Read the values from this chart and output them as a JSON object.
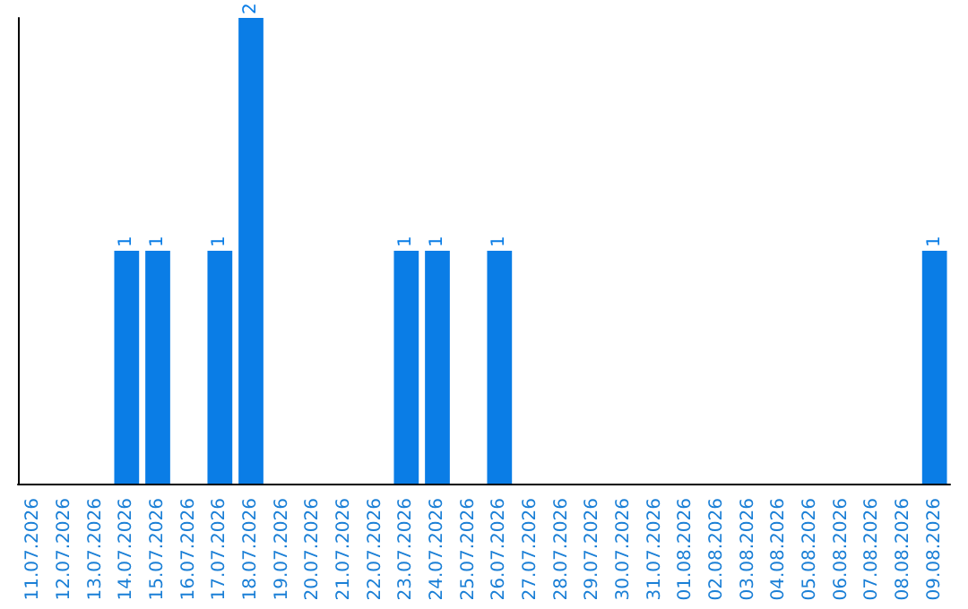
{
  "chart_data": {
    "type": "bar",
    "categories": [
      "11.07.2026",
      "12.07.2026",
      "13.07.2026",
      "14.07.2026",
      "15.07.2026",
      "16.07.2026",
      "17.07.2026",
      "18.07.2026",
      "19.07.2026",
      "20.07.2026",
      "21.07.2026",
      "22.07.2026",
      "23.07.2026",
      "24.07.2026",
      "25.07.2026",
      "26.07.2026",
      "27.07.2026",
      "28.07.2026",
      "29.07.2026",
      "30.07.2026",
      "31.07.2026",
      "01.08.2026",
      "02.08.2026",
      "03.08.2026",
      "04.08.2026",
      "05.08.2026",
      "06.08.2026",
      "07.08.2026",
      "08.08.2026",
      "09.08.2026"
    ],
    "values": [
      0,
      0,
      0,
      1,
      1,
      0,
      1,
      2,
      0,
      0,
      0,
      0,
      1,
      1,
      0,
      1,
      0,
      0,
      0,
      0,
      0,
      0,
      0,
      0,
      0,
      0,
      0,
      0,
      0,
      1
    ],
    "value_labels": [
      null,
      null,
      null,
      "1",
      "1",
      null,
      "1",
      "2",
      null,
      null,
      null,
      null,
      "1",
      "1",
      null,
      "1",
      null,
      null,
      null,
      null,
      null,
      null,
      null,
      null,
      null,
      null,
      null,
      null,
      null,
      "1"
    ],
    "color": "#0a7de6",
    "grid": false,
    "tick_labels": "x"
  }
}
